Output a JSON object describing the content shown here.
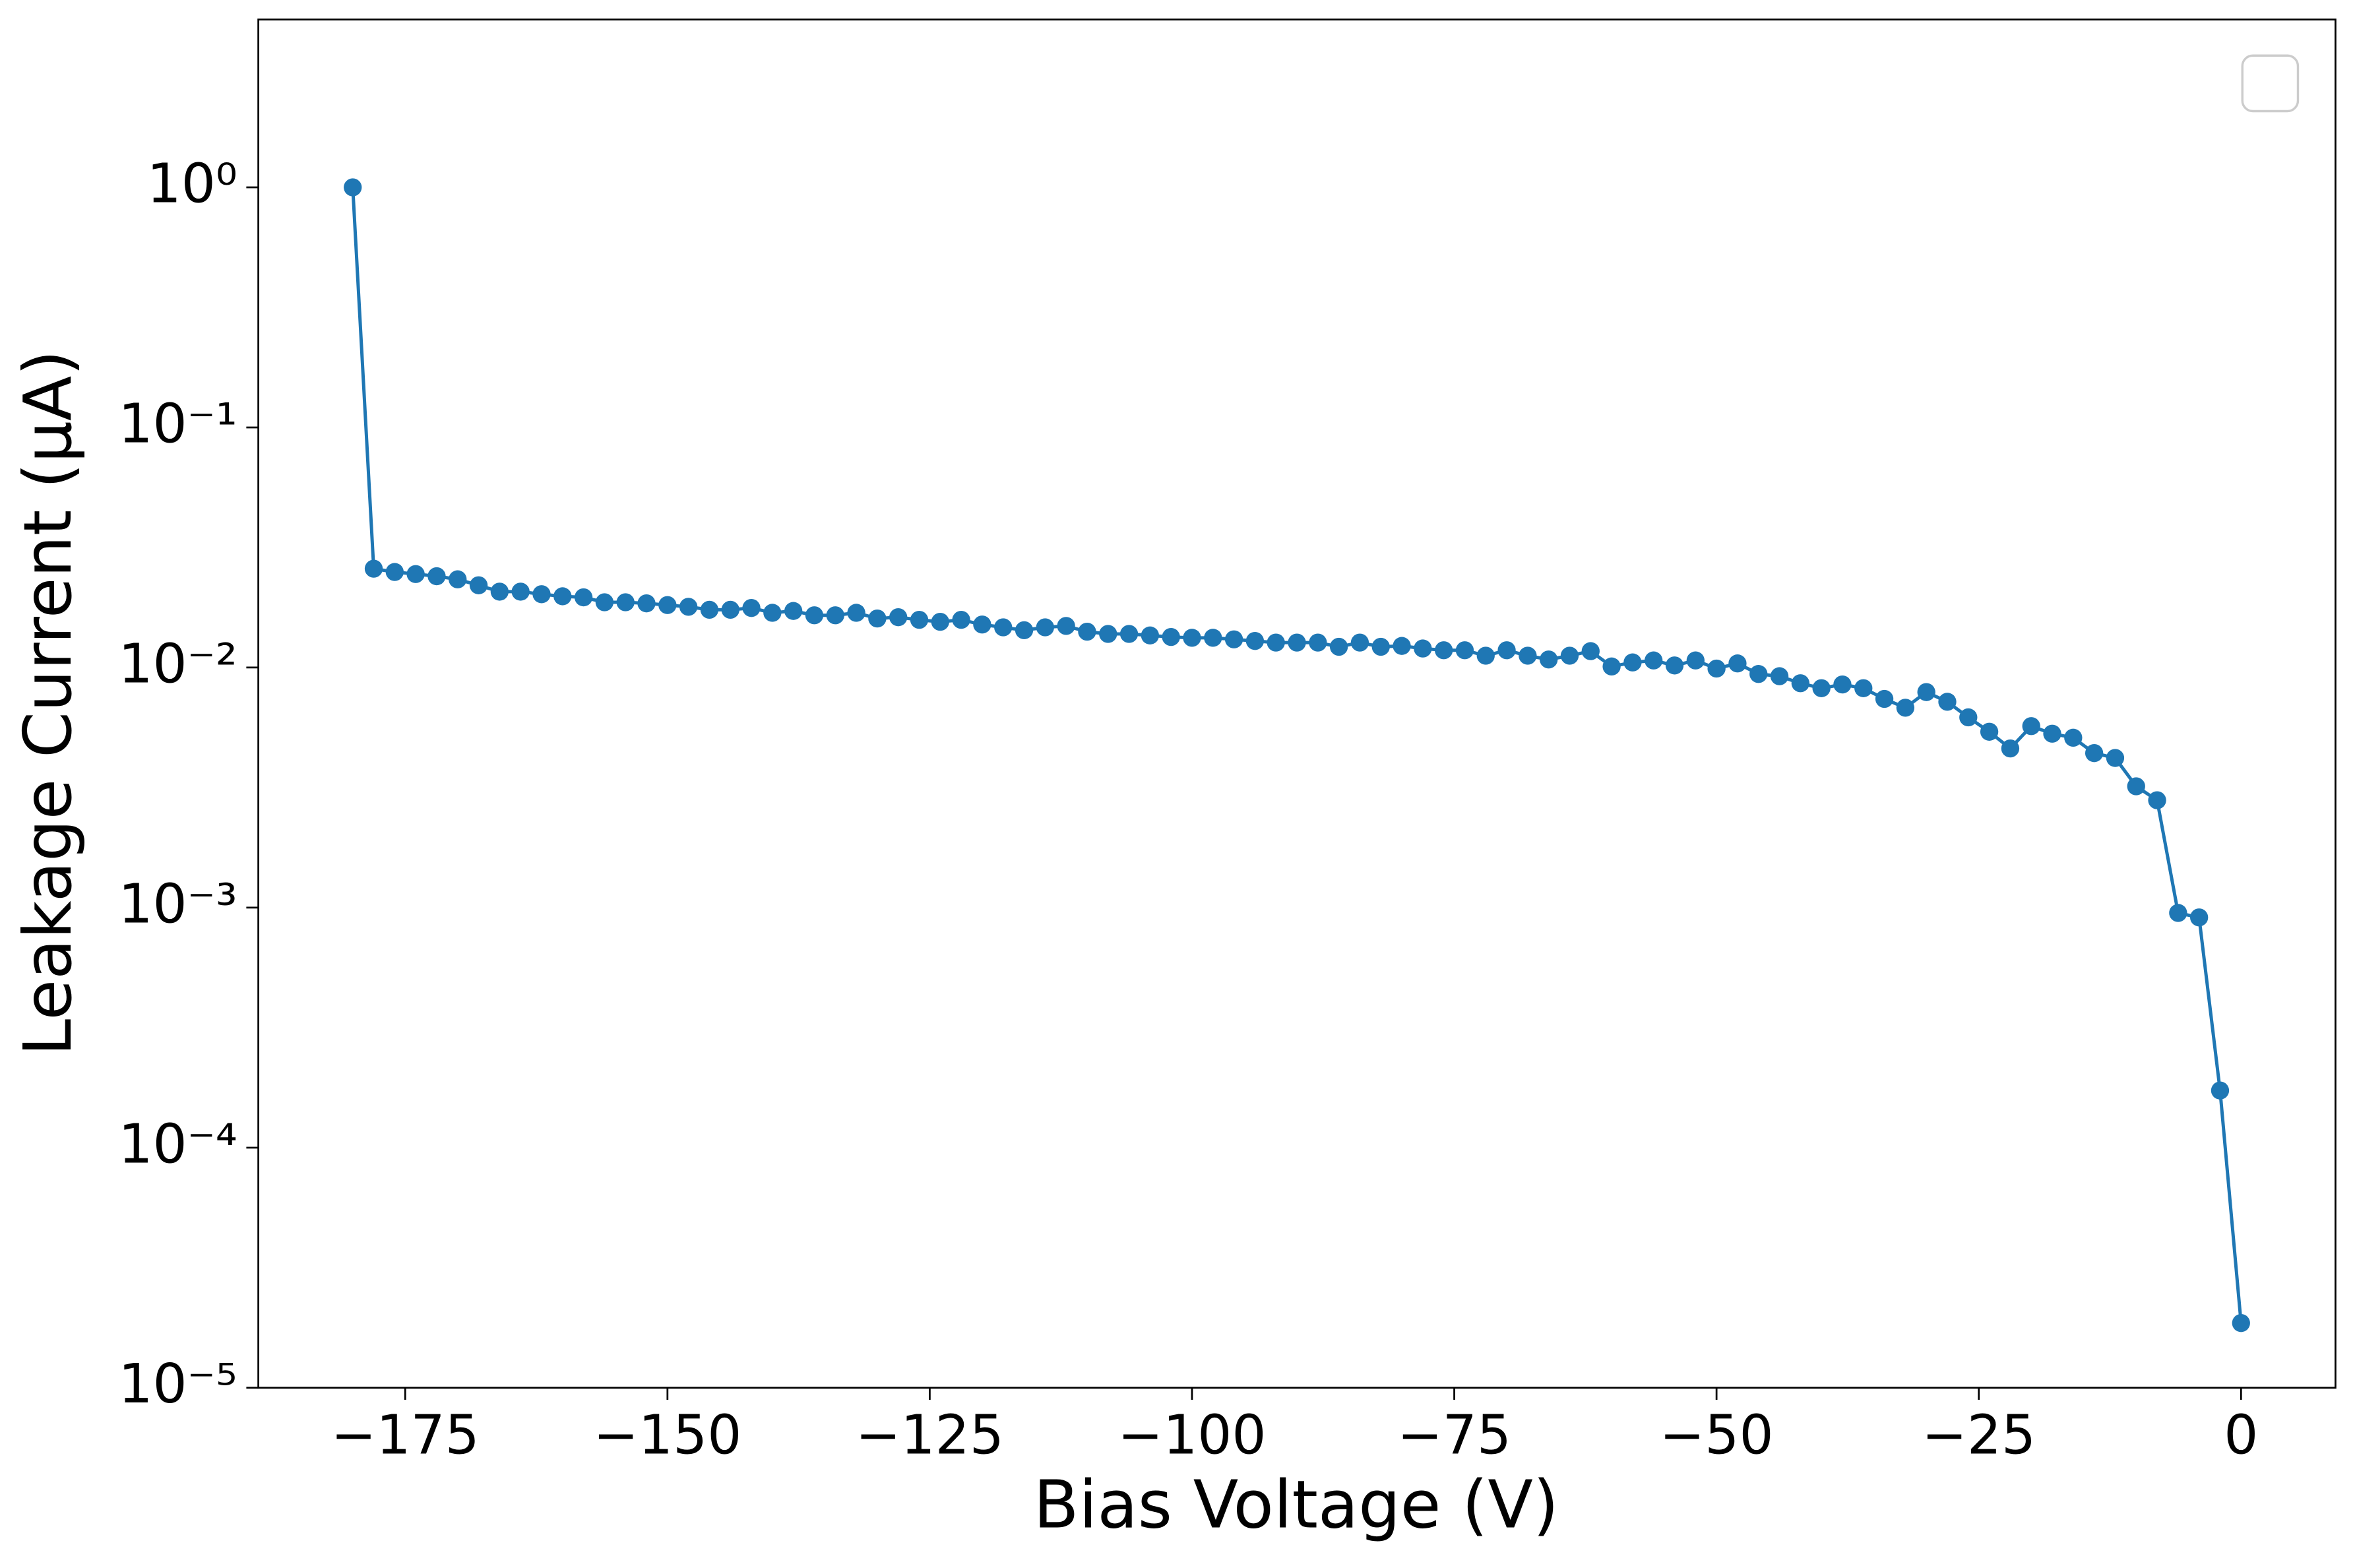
{
  "chart_data": {
    "type": "line",
    "xlabel": "Bias Voltage (V)",
    "ylabel": "Leakage Current (μA)",
    "color": "#1f77b4",
    "markers": true,
    "log_y": true,
    "legend": "upper right",
    "x": [
      -180,
      -178,
      -176,
      -174,
      -172,
      -170,
      -168,
      -166,
      -164,
      -162,
      -160,
      -158,
      -156,
      -154,
      -152,
      -150,
      -148,
      -146,
      -144,
      -142,
      -140,
      -138,
      -136,
      -134,
      -132,
      -130,
      -128,
      -126,
      -124,
      -122,
      -120,
      -118,
      -116,
      -114,
      -112,
      -110,
      -108,
      -106,
      -104,
      -102,
      -100,
      -98,
      -96,
      -94,
      -92,
      -90,
      -88,
      -86,
      -84,
      -82,
      -80,
      -78,
      -76,
      -74,
      -72,
      -70,
      -68,
      -66,
      -64,
      -62,
      -60,
      -58,
      -56,
      -54,
      -52,
      -50,
      -48,
      -46,
      -44,
      -42,
      -40,
      -38,
      -36,
      -34,
      -32,
      -30,
      -28,
      -26,
      -24,
      -22,
      -20,
      -18,
      -16,
      -14,
      -12,
      -10,
      -8,
      -6,
      -4,
      -2,
      0
    ],
    "values": [
      1.0,
      0.0258,
      0.025,
      0.0245,
      0.024,
      0.0233,
      0.022,
      0.0207,
      0.0207,
      0.0202,
      0.0198,
      0.0196,
      0.0187,
      0.0187,
      0.0185,
      0.0182,
      0.0179,
      0.0174,
      0.0174,
      0.0177,
      0.0169,
      0.0172,
      0.0165,
      0.0165,
      0.0169,
      0.016,
      0.0162,
      0.0158,
      0.0155,
      0.0158,
      0.0151,
      0.0147,
      0.0143,
      0.0147,
      0.0149,
      0.0141,
      0.0138,
      0.0138,
      0.0136,
      0.0134,
      0.0133,
      0.0133,
      0.0131,
      0.0129,
      0.0127,
      0.0127,
      0.0127,
      0.0122,
      0.0127,
      0.0122,
      0.0123,
      0.012,
      0.0118,
      0.0118,
      0.0112,
      0.0118,
      0.0112,
      0.0108,
      0.0112,
      0.0117,
      0.0101,
      0.0105,
      0.0107,
      0.0102,
      0.0107,
      0.0099,
      0.0104,
      0.0094,
      0.0092,
      0.0086,
      0.0082,
      0.0085,
      0.0082,
      0.0074,
      0.0068,
      0.0079,
      0.0072,
      0.0062,
      0.0054,
      0.0046,
      0.0057,
      0.0053,
      0.0051,
      0.0044,
      0.0042,
      0.0032,
      0.0028,
      0.00095,
      0.00091,
      0.000173,
      1.86e-05
    ],
    "xlim": [
      -189,
      9
    ],
    "xticks": [
      {
        "value": -175,
        "label": "−175"
      },
      {
        "value": -150,
        "label": "−150"
      },
      {
        "value": -125,
        "label": "−125"
      },
      {
        "value": -100,
        "label": "−100"
      },
      {
        "value": -75,
        "label": "−75"
      },
      {
        "value": -50,
        "label": "−50"
      },
      {
        "value": -25,
        "label": "−25"
      },
      0
    ],
    "ylim": [
      1e-05,
      5
    ],
    "yticks": [
      {
        "value": 1e-05,
        "label": "10⁻⁵"
      },
      {
        "value": 0.0001,
        "label": "10⁻⁴"
      },
      {
        "value": 0.001,
        "label": "10⁻³"
      },
      {
        "value": 0.01,
        "label": "10⁻²"
      },
      {
        "value": 0.1,
        "label": "10⁻¹"
      },
      {
        "value": 1,
        "label": "10⁰"
      }
    ]
  }
}
